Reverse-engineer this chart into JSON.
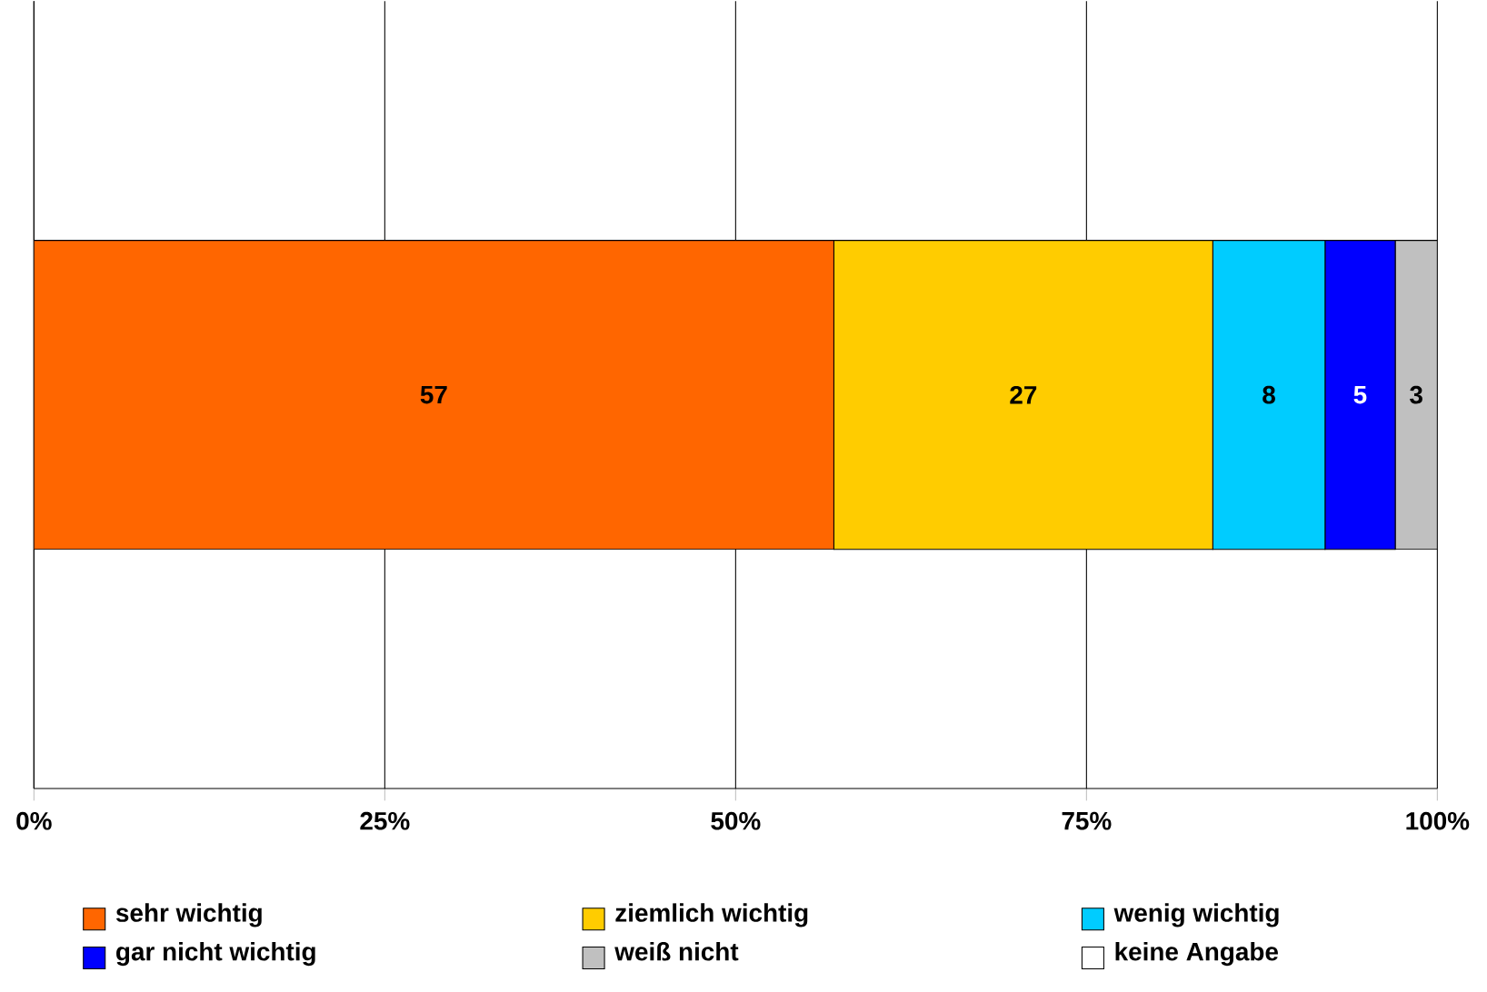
{
  "chart_data": {
    "type": "bar",
    "orientation": "horizontal",
    "stacked": true,
    "categories": [
      null
    ],
    "series": [
      {
        "name": "sehr wichtig",
        "color": "#ff6600",
        "values": [
          57
        ]
      },
      {
        "name": "ziemlich wichtig",
        "color": "#ffcc00",
        "values": [
          27
        ]
      },
      {
        "name": "wenig wichtig",
        "color": "#00ccff",
        "values": [
          8
        ]
      },
      {
        "name": "gar nicht wichtig",
        "color": "#0000ff",
        "values": [
          5
        ]
      },
      {
        "name": "weiß nicht",
        "color": "#c0c0c0",
        "values": [
          3
        ]
      },
      {
        "name": "keine Angabe",
        "color": "#ffffff",
        "values": [
          null
        ]
      }
    ],
    "xlim": [
      0,
      100
    ],
    "xticks": [
      {
        "value": 0,
        "label": "0%"
      },
      {
        "value": 25,
        "label": "25%"
      },
      {
        "value": 50,
        "label": "50%"
      },
      {
        "value": 75,
        "label": "75%"
      },
      {
        "value": 100,
        "label": "100%"
      }
    ],
    "grid": "x",
    "legend": "bottom",
    "data_labels": true
  }
}
